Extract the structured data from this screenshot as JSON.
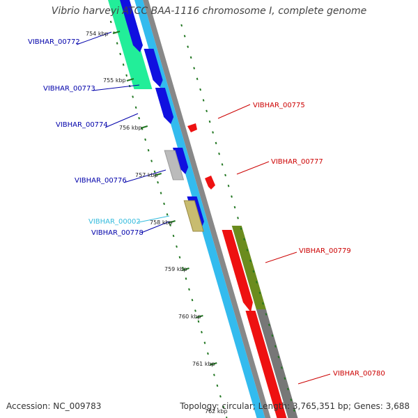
{
  "title": "Vibrio harveyi ATCC BAA-1116 chromosome I, complete genome",
  "accession": "Accession: NC_009783",
  "topology": "Topology: circular; Length: 3,765,351 bp; Genes: 3,688",
  "colors": {
    "blue_gene": "#1010e0",
    "cyan_track": "#33bbee",
    "red_gene": "#ee1111",
    "olive_gene": "#6b8c1e",
    "gray_track": "#888888",
    "aqua_gene": "#22ee99",
    "tan_gene": "#c8bc70",
    "silver_gene": "#bbbbbb",
    "tick_green": "#227722",
    "label_blue": "#0000aa",
    "label_red": "#cc0000",
    "label_cyan": "#33bbdd"
  },
  "ticks": [
    "754 kbp",
    "755 kbp",
    "756 kbp",
    "757 kbp",
    "758 kbp",
    "759 kbp",
    "760 kbp",
    "761 kbp",
    "762 kbp"
  ],
  "gene_labels": [
    {
      "id": "VIBHAR_00772",
      "color": "blue"
    },
    {
      "id": "VIBHAR_00773",
      "color": "blue"
    },
    {
      "id": "VIBHAR_00774",
      "color": "blue"
    },
    {
      "id": "VIBHAR_00776",
      "color": "blue"
    },
    {
      "id": "VIBHAR_00002",
      "color": "cyan"
    },
    {
      "id": "VIBHAR_00778",
      "color": "blue"
    },
    {
      "id": "VIBHAR_00775",
      "color": "red"
    },
    {
      "id": "VIBHAR_00777",
      "color": "red"
    },
    {
      "id": "VIBHAR_00779",
      "color": "red"
    },
    {
      "id": "VIBHAR_00780",
      "color": "red"
    }
  ]
}
